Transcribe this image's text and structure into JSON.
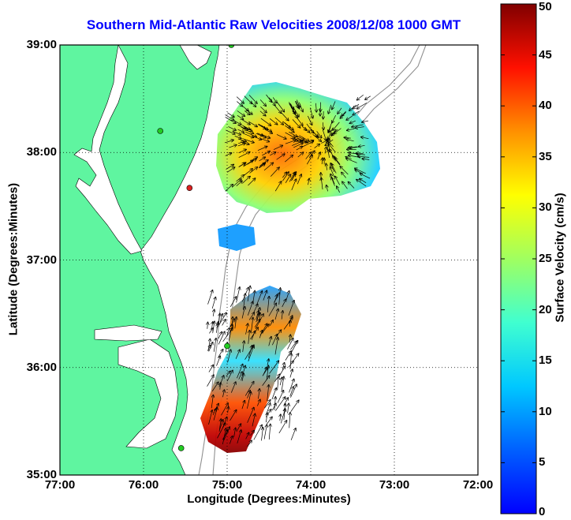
{
  "map": {
    "title": "Southern Mid-Atlantic Raw Velocities 2008/12/08 1000 GMT",
    "xlabel": "Longitude (Degrees:Minutes)",
    "ylabel": "Latitude (Degrees:Minutes)",
    "lon_range": [
      -77,
      -72
    ],
    "lat_range": [
      35,
      39
    ],
    "lon_ticks": [
      "77:00",
      "76:00",
      "75:00",
      "74:00",
      "73:00",
      "72:00"
    ],
    "lat_ticks": [
      "35:00",
      "36:00",
      "37:00",
      "38:00",
      "39:00"
    ],
    "grid": true,
    "land_color": "#5ff5a0",
    "water_color": "#ffffff"
  },
  "colorbar": {
    "label": "Surface Velocity (cm/s)",
    "min": 0,
    "max": 50,
    "ticks": [
      "0",
      "5",
      "10",
      "15",
      "20",
      "25",
      "30",
      "35",
      "40",
      "45",
      "50"
    ],
    "colormap": "jet"
  },
  "stations": [
    {
      "lon": -74.95,
      "lat": 39.0,
      "color": "#22cc22"
    },
    {
      "lon": -75.8,
      "lat": 38.2,
      "color": "#22cc22"
    },
    {
      "lon": -75.45,
      "lat": 37.67,
      "color": "#dd2222"
    },
    {
      "lon": -75.0,
      "lat": 36.2,
      "color": "#22cc22"
    },
    {
      "lon": -75.55,
      "lat": 35.25,
      "color": "#22cc22"
    }
  ]
}
